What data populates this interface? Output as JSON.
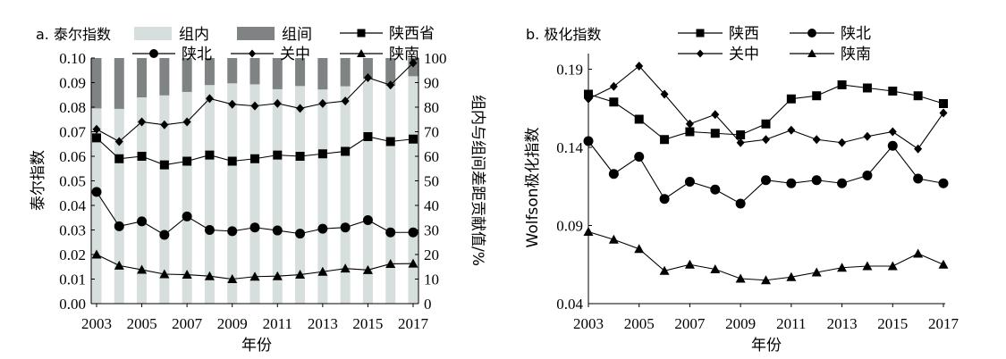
{
  "chart_data": [
    {
      "type": "line",
      "title": "a. 泰尔指数",
      "xlabel": "年份",
      "ylabel": "泰尔指数",
      "y2label": "组内与组间差距贡献值/%",
      "ylim": [
        0,
        0.1
      ],
      "y2lim": [
        0,
        100
      ],
      "xlim": [
        2003,
        2017
      ],
      "x_ticks": [
        "2003",
        "2005",
        "2007",
        "2009",
        "2011",
        "2013",
        "2015",
        "2017"
      ],
      "y_ticks": [
        "0.00",
        "0.01",
        "0.02",
        "0.03",
        "0.04",
        "0.05",
        "0.06",
        "0.07",
        "0.08",
        "0.09",
        "0.10"
      ],
      "y2_ticks": [
        "0",
        "10",
        "20",
        "30",
        "40",
        "50",
        "60",
        "70",
        "80",
        "90",
        "100"
      ],
      "x": [
        2003,
        2004,
        2005,
        2006,
        2007,
        2008,
        2009,
        2010,
        2011,
        2012,
        2013,
        2014,
        2015,
        2016,
        2017
      ],
      "bar_series": [
        {
          "name": "组内",
          "color": "#d6dede",
          "values": [
            79.5,
            79.3,
            84,
            84.8,
            86.2,
            89,
            89.7,
            89.3,
            87.3,
            88.6,
            87.2,
            88.5,
            91.6,
            88.7,
            92.6
          ]
        },
        {
          "name": "组间",
          "color": "#7f8384",
          "values": [
            20.5,
            20.7,
            16,
            15.2,
            13.8,
            11,
            10.3,
            10.7,
            12.7,
            11.4,
            12.8,
            11.5,
            8.4,
            11.3,
            7.4
          ]
        }
      ],
      "series": [
        {
          "name": "陕西省",
          "marker": "square",
          "values": [
            0.0675,
            0.059,
            0.06,
            0.0565,
            0.058,
            0.0605,
            0.058,
            0.059,
            0.0605,
            0.06,
            0.061,
            0.062,
            0.068,
            0.066,
            0.067
          ]
        },
        {
          "name": "陕北",
          "marker": "circle",
          "values": [
            0.0455,
            0.0315,
            0.0335,
            0.028,
            0.0355,
            0.03,
            0.0295,
            0.031,
            0.0298,
            0.0285,
            0.0305,
            0.031,
            0.034,
            0.029,
            0.029
          ]
        },
        {
          "name": "关中",
          "marker": "diamond",
          "values": [
            0.071,
            0.066,
            0.074,
            0.0728,
            0.074,
            0.0835,
            0.0812,
            0.0805,
            0.0815,
            0.0795,
            0.0815,
            0.0825,
            0.092,
            0.089,
            0.098
          ]
        },
        {
          "name": "陕南",
          "marker": "triangle",
          "values": [
            0.02,
            0.0155,
            0.0138,
            0.012,
            0.0118,
            0.0112,
            0.01,
            0.011,
            0.0112,
            0.0118,
            0.013,
            0.0143,
            0.0137,
            0.0162,
            0.0163
          ]
        }
      ]
    },
    {
      "type": "line",
      "title": "b. 极化指数",
      "xlabel": "年份",
      "ylabel": "Wolfson极化指数",
      "ylim": [
        0.04,
        0.2
      ],
      "xlim": [
        2003,
        2017
      ],
      "x_ticks": [
        "2003",
        "2005",
        "2007",
        "2009",
        "2011",
        "2013",
        "2015",
        "2017"
      ],
      "y_ticks": [
        "0.04",
        "0.09",
        "0.14",
        "0.19"
      ],
      "x": [
        2003,
        2004,
        2005,
        2006,
        2007,
        2008,
        2009,
        2010,
        2011,
        2012,
        2013,
        2014,
        2015,
        2016,
        2017
      ],
      "series": [
        {
          "name": "陕西",
          "marker": "square",
          "values": [
            0.174,
            0.169,
            0.158,
            0.145,
            0.15,
            0.149,
            0.148,
            0.155,
            0.171,
            0.173,
            0.18,
            0.178,
            0.176,
            0.173,
            0.168
          ]
        },
        {
          "name": "陕北",
          "marker": "circle",
          "values": [
            0.144,
            0.123,
            0.134,
            0.107,
            0.118,
            0.113,
            0.104,
            0.119,
            0.117,
            0.119,
            0.117,
            0.122,
            0.141,
            0.12,
            0.117
          ]
        },
        {
          "name": "关中",
          "marker": "diamond",
          "values": [
            0.171,
            0.179,
            0.192,
            0.174,
            0.155,
            0.161,
            0.143,
            0.145,
            0.151,
            0.145,
            0.143,
            0.147,
            0.15,
            0.139,
            0.162
          ]
        },
        {
          "name": "陕南",
          "marker": "triangle",
          "values": [
            0.086,
            0.081,
            0.075,
            0.061,
            0.065,
            0.062,
            0.056,
            0.055,
            0.057,
            0.06,
            0.063,
            0.064,
            0.064,
            0.072,
            0.065
          ]
        }
      ]
    }
  ]
}
